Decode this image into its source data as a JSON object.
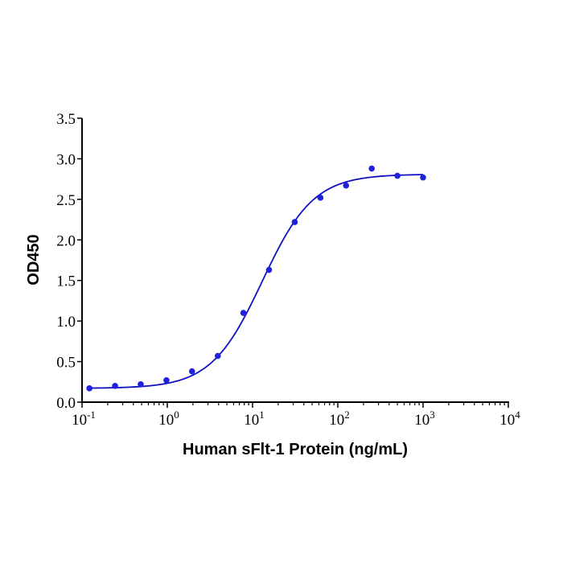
{
  "chart_data": {
    "type": "scatter",
    "title": "",
    "xlabel": "Human sFlt-1 Protein (ng/mL)",
    "ylabel": "OD450",
    "x_scale": "log",
    "xlim": [
      0.1,
      10000
    ],
    "ylim": [
      0,
      3.5
    ],
    "x_ticks": [
      {
        "base": "10",
        "exp": "-1"
      },
      {
        "base": "10",
        "exp": "0"
      },
      {
        "base": "10",
        "exp": "1"
      },
      {
        "base": "10",
        "exp": "2"
      },
      {
        "base": "10",
        "exp": "3"
      },
      {
        "base": "10",
        "exp": "4"
      }
    ],
    "y_ticks": [
      "0.0",
      "0.5",
      "1.0",
      "1.5",
      "2.0",
      "2.5",
      "3.0",
      "3.5"
    ],
    "grid": false,
    "color": "#2020e0",
    "curve_color": "#1010c0",
    "series": [
      {
        "x": [
          0.122,
          0.244,
          0.488,
          0.977,
          1.95,
          3.91,
          7.81,
          15.6,
          31.25,
          62.5,
          125,
          250,
          500,
          1000
        ],
        "y": [
          0.17,
          0.2,
          0.22,
          0.27,
          0.38,
          0.57,
          1.1,
          1.63,
          2.22,
          2.52,
          2.67,
          2.88,
          2.79,
          2.77
        ],
        "fit": "4PL"
      }
    ]
  }
}
